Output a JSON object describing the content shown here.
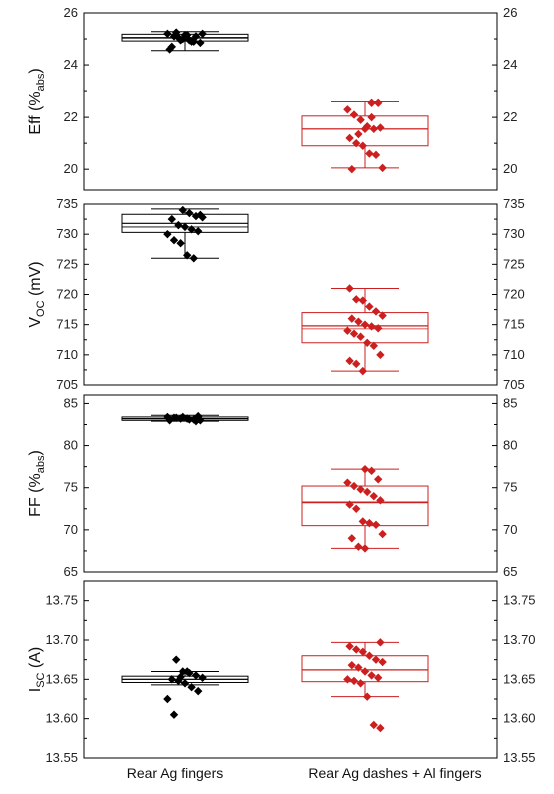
{
  "colors": {
    "group1": "#000000",
    "group2": "#cc1f1f",
    "axis": "#000000"
  },
  "chart_data": [
    {
      "type": "box",
      "ylabel": "Eff (%",
      "ylabel_sub": "abs",
      "ylabel_suffix": ")",
      "ylim": [
        19.2,
        26
      ],
      "yticks": [
        20,
        22,
        24,
        26
      ],
      "categories": [
        "Rear Ag fingers",
        "Rear Ag dashes + Al fingers"
      ],
      "boxes": [
        {
          "name": "Rear Ag fingers",
          "whisker_low": 24.55,
          "q1": 24.92,
          "median": 25.05,
          "mean": 25.03,
          "q3": 25.18,
          "whisker_high": 25.28
        },
        {
          "name": "Rear Ag dashes + Al fingers",
          "whisker_low": 20.05,
          "q1": 20.9,
          "median": 21.55,
          "mean": 21.55,
          "q3": 22.05,
          "whisker_high": 22.6
        }
      ],
      "points": [
        [
          25.2,
          25.1,
          24.95,
          25.15,
          24.9,
          24.85,
          24.6,
          25.25,
          25.0,
          24.95,
          25.1,
          25.2,
          24.7,
          25.05,
          25.15,
          24.9
        ],
        [
          22.55,
          22.55,
          22.3,
          22.1,
          21.9,
          21.65,
          21.55,
          21.6,
          21.2,
          21.0,
          20.9,
          20.6,
          20.55,
          20.05,
          20.0,
          21.35,
          21.55,
          22.0
        ]
      ]
    },
    {
      "type": "box",
      "ylabel": "V",
      "ylabel_sub": "OC",
      "ylabel_suffix": " (mV)",
      "ylim": [
        705,
        735
      ],
      "yticks": [
        705,
        710,
        715,
        720,
        725,
        730,
        735
      ],
      "categories": [
        "Rear Ag fingers",
        "Rear Ag dashes + Al fingers"
      ],
      "boxes": [
        {
          "name": "Rear Ag fingers",
          "whisker_low": 726.0,
          "q1": 730.3,
          "median": 731.8,
          "mean": 731.2,
          "q3": 733.3,
          "whisker_high": 734.2
        },
        {
          "name": "Rear Ag dashes + Al fingers",
          "whisker_low": 707.3,
          "q1": 712.0,
          "median": 714.8,
          "mean": 714.3,
          "q3": 717.0,
          "whisker_high": 721.0
        }
      ],
      "points": [
        [
          734.0,
          733.5,
          733.0,
          732.8,
          732.5,
          731.5,
          731.2,
          730.8,
          730.5,
          730.0,
          729.0,
          728.5,
          726.5,
          726.0,
          733.2
        ],
        [
          721.0,
          719.2,
          719.0,
          718.0,
          717.2,
          716.5,
          716.0,
          715.5,
          715.0,
          714.7,
          714.4,
          714.0,
          713.5,
          713.0,
          712.0,
          711.5,
          710.0,
          709.0,
          708.5,
          707.3
        ]
      ]
    },
    {
      "type": "box",
      "ylabel": "FF (%",
      "ylabel_sub": "abs",
      "ylabel_suffix": ")",
      "ylim": [
        65,
        86
      ],
      "yticks": [
        65,
        70,
        75,
        80,
        85
      ],
      "categories": [
        "Rear Ag fingers",
        "Rear Ag dashes + Al fingers"
      ],
      "boxes": [
        {
          "name": "Rear Ag fingers",
          "whisker_low": 82.9,
          "q1": 83.0,
          "median": 83.2,
          "mean": 83.2,
          "q3": 83.4,
          "whisker_high": 83.6
        },
        {
          "name": "Rear Ag dashes + Al fingers",
          "whisker_low": 67.8,
          "q1": 70.5,
          "median": 73.3,
          "mean": 73.2,
          "q3": 75.2,
          "whisker_high": 77.2
        }
      ],
      "points": [
        [
          83.5,
          83.4,
          83.3,
          83.2,
          83.2,
          83.1,
          83.0,
          83.0,
          83.3,
          83.4,
          83.1,
          82.9
        ],
        [
          77.2,
          77.0,
          76.0,
          75.6,
          75.2,
          74.8,
          74.5,
          74.0,
          73.5,
          73.0,
          72.5,
          71.0,
          70.8,
          70.6,
          69.5,
          69.0,
          68.0,
          67.8
        ]
      ]
    },
    {
      "type": "box",
      "ylabel": "I",
      "ylabel_sub": "SC",
      "ylabel_suffix": " (A)",
      "ylim": [
        13.55,
        13.775
      ],
      "yticks": [
        13.55,
        13.6,
        13.65,
        13.7,
        13.75
      ],
      "tick_decimals": 2,
      "categories": [
        "Rear Ag fingers",
        "Rear Ag dashes + Al fingers"
      ],
      "boxes": [
        {
          "name": "Rear Ag fingers",
          "whisker_low": 13.643,
          "q1": 13.646,
          "median": 13.65,
          "mean": 13.65,
          "q3": 13.654,
          "whisker_high": 13.66
        },
        {
          "name": "Rear Ag dashes + Al fingers",
          "whisker_low": 13.628,
          "q1": 13.647,
          "median": 13.662,
          "mean": 13.662,
          "q3": 13.68,
          "whisker_high": 13.697
        }
      ],
      "points": [
        [
          13.675,
          13.66,
          13.658,
          13.655,
          13.652,
          13.65,
          13.648,
          13.645,
          13.64,
          13.635,
          13.625,
          13.605,
          13.653,
          13.66
        ],
        [
          13.697,
          13.692,
          13.688,
          13.685,
          13.68,
          13.675,
          13.672,
          13.668,
          13.665,
          13.66,
          13.655,
          13.652,
          13.65,
          13.648,
          13.645,
          13.628,
          13.592,
          13.588
        ]
      ]
    }
  ]
}
